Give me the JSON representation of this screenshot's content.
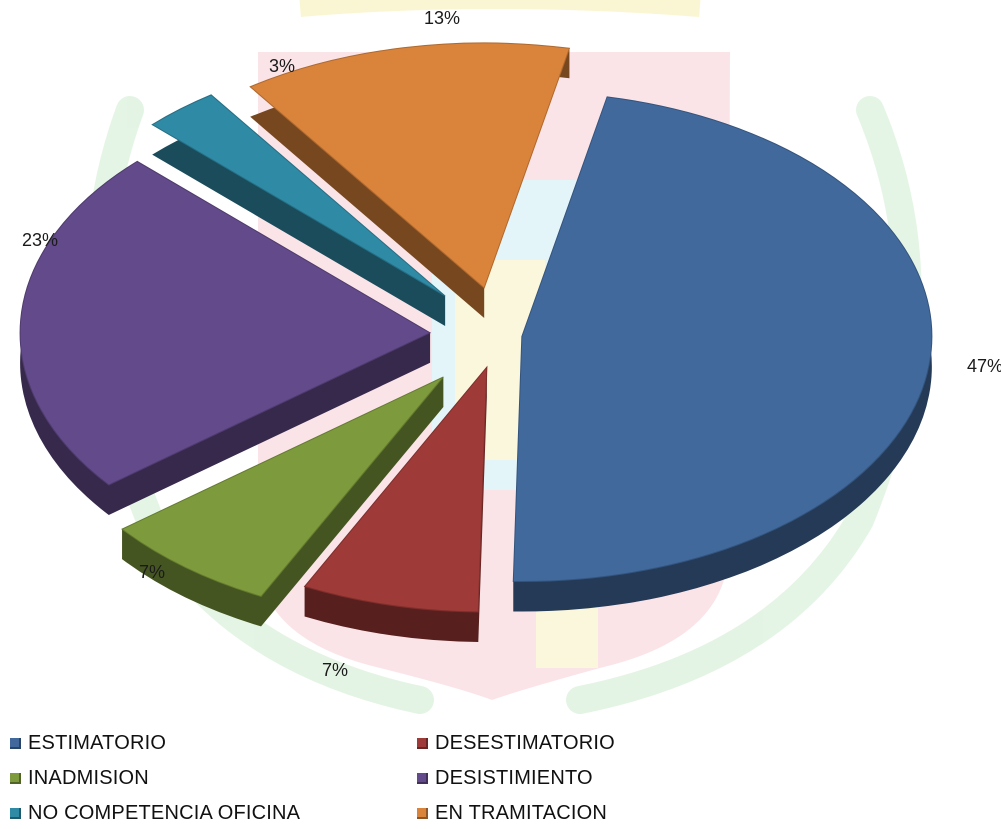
{
  "chart_data": {
    "type": "pie",
    "style": "3d-exploded",
    "title": "",
    "slices": [
      {
        "label": "ESTIMATORIO",
        "value": 47,
        "display": "47%",
        "color": "#41699c"
      },
      {
        "label": "DESESTIMATORIO",
        "value": 7,
        "display": "7%",
        "color": "#9e3a37"
      },
      {
        "label": "INADMISION",
        "value": 7,
        "display": "7%",
        "color": "#7d9a3c"
      },
      {
        "label": "DESISTIMIENTO",
        "value": 23,
        "display": "23%",
        "color": "#634a8a"
      },
      {
        "label": "NO COMPETENCIA OFICINA",
        "value": 3,
        "display": "3%",
        "color": "#2f8aa5"
      },
      {
        "label": "EN TRAMITACION",
        "value": 13,
        "display": "13%",
        "color": "#d9833b"
      }
    ],
    "legend_position": "bottom",
    "legend": [
      "ESTIMATORIO",
      "DESESTIMATORIO",
      "INADMISION",
      "DESISTIMIENTO",
      "NO COMPETENCIA OFICINA",
      "EN TRAMITACION"
    ]
  }
}
